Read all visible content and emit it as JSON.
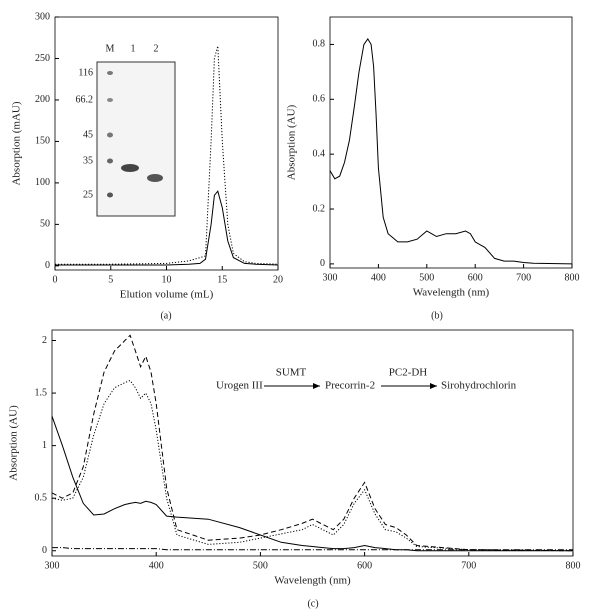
{
  "chart_data": [
    {
      "type": "line",
      "x_label": "Elution volume (mL)",
      "y_label": "Absorption (mAU)",
      "panel_label": "(a)",
      "x": [
        0,
        5,
        10,
        12,
        13,
        13.5,
        14,
        14.3,
        14.6,
        15,
        15.5,
        16,
        17,
        18,
        20
      ],
      "series": [
        {
          "color": "#000",
          "style": "solid",
          "values": [
            1,
            1,
            1,
            2,
            3,
            8,
            50,
            85,
            90,
            70,
            30,
            10,
            3,
            2,
            1
          ]
        },
        {
          "color": "#000",
          "style": "dotted",
          "values": [
            2,
            2,
            3,
            6,
            10,
            12,
            150,
            250,
            265,
            150,
            50,
            15,
            5,
            3,
            2
          ]
        }
      ],
      "xlim": [
        0,
        20
      ],
      "xticks": [
        0,
        5,
        10,
        15,
        20
      ],
      "ylim": [
        -5,
        300
      ],
      "yticks": [
        0,
        50,
        100,
        150,
        200,
        250,
        300
      ],
      "inset": {
        "lane_labels": [
          "M",
          "1",
          "2"
        ],
        "marker_labels": [
          "116",
          "66.2",
          "45",
          "35",
          "25"
        ]
      }
    },
    {
      "type": "line",
      "x_label": "Wavelength (nm)",
      "y_label": "Absorption (AU)",
      "panel_label": "(b)",
      "x": [
        300,
        310,
        320,
        330,
        340,
        350,
        360,
        370,
        378,
        385,
        390,
        395,
        400,
        410,
        420,
        440,
        460,
        480,
        500,
        510,
        520,
        540,
        560,
        580,
        590,
        600,
        610,
        620,
        640,
        660,
        680,
        700,
        720,
        800
      ],
      "series": [
        {
          "color": "#000",
          "style": "solid",
          "values": [
            0.34,
            0.31,
            0.32,
            0.37,
            0.45,
            0.57,
            0.7,
            0.8,
            0.82,
            0.8,
            0.72,
            0.55,
            0.35,
            0.17,
            0.11,
            0.08,
            0.08,
            0.09,
            0.12,
            0.11,
            0.1,
            0.11,
            0.11,
            0.12,
            0.11,
            0.08,
            0.07,
            0.06,
            0.02,
            0.01,
            0.01,
            0.005,
            0.002,
            0
          ]
        }
      ],
      "xlim": [
        300,
        800
      ],
      "xticks": [
        300,
        400,
        500,
        600,
        700,
        800
      ],
      "ylim": [
        -0.015,
        0.9
      ],
      "yticks": [
        0,
        0.2,
        0.4,
        0.6,
        0.8
      ]
    },
    {
      "type": "line",
      "x_label": "Wavelength (nm)",
      "y_label": "Absorption (AU)",
      "panel_label": "(c)",
      "x": [
        300,
        310,
        320,
        330,
        340,
        350,
        360,
        370,
        375,
        380,
        385,
        390,
        395,
        400,
        410,
        420,
        450,
        480,
        500,
        520,
        540,
        550,
        560,
        570,
        580,
        590,
        600,
        610,
        620,
        630,
        640,
        650,
        700,
        800
      ],
      "series": [
        {
          "color": "#000",
          "style": "solid",
          "values": [
            1.28,
            1.0,
            0.7,
            0.45,
            0.34,
            0.35,
            0.4,
            0.44,
            0.45,
            0.46,
            0.45,
            0.47,
            0.46,
            0.44,
            0.33,
            0.32,
            0.3,
            0.22,
            0.15,
            0.08,
            0.05,
            0.04,
            0.03,
            0.02,
            0.02,
            0.03,
            0.05,
            0.03,
            0.02,
            0.01,
            0.01,
            0,
            0,
            0
          ]
        },
        {
          "color": "#000",
          "style": "dashed",
          "values": [
            0.55,
            0.5,
            0.55,
            0.8,
            1.3,
            1.7,
            1.9,
            2.0,
            2.05,
            1.9,
            1.75,
            1.85,
            1.7,
            1.4,
            0.6,
            0.2,
            0.1,
            0.12,
            0.15,
            0.2,
            0.26,
            0.3,
            0.25,
            0.2,
            0.3,
            0.5,
            0.65,
            0.4,
            0.25,
            0.22,
            0.15,
            0.05,
            0.01,
            0
          ]
        },
        {
          "color": "#000",
          "style": "dotted",
          "values": [
            0.5,
            0.48,
            0.5,
            0.7,
            1.1,
            1.4,
            1.55,
            1.6,
            1.62,
            1.55,
            1.45,
            1.5,
            1.4,
            1.15,
            0.5,
            0.15,
            0.06,
            0.08,
            0.12,
            0.16,
            0.2,
            0.25,
            0.2,
            0.15,
            0.25,
            0.45,
            0.58,
            0.35,
            0.2,
            0.18,
            0.12,
            0.04,
            0.01,
            0
          ]
        },
        {
          "color": "#000",
          "style": "dashdot",
          "values": [
            0.03,
            0.03,
            0.02,
            0.02,
            0.02,
            0.02,
            0.02,
            0.02,
            0.02,
            0.02,
            0.02,
            0.02,
            0.02,
            0.02,
            0.01,
            0.01,
            0.01,
            0.01,
            0.01,
            0.01,
            0.01,
            0.01,
            0.01,
            0.01,
            0.01,
            0.01,
            0.01,
            0.01,
            0.01,
            0.01,
            0.01,
            0.01,
            0.01,
            0.01
          ]
        }
      ],
      "xlim": [
        300,
        800
      ],
      "xticks": [
        300,
        400,
        500,
        600,
        700,
        800
      ],
      "ylim": [
        -0.05,
        2.1
      ],
      "yticks": [
        0,
        0.5,
        1,
        1.5,
        2
      ],
      "annotation": {
        "start": "Urogen III",
        "enzyme_1": "SUMT",
        "middle": "Precorrin-2",
        "enzyme_2": "PC2-DH",
        "end": "Sirohydrochlorin"
      }
    }
  ]
}
